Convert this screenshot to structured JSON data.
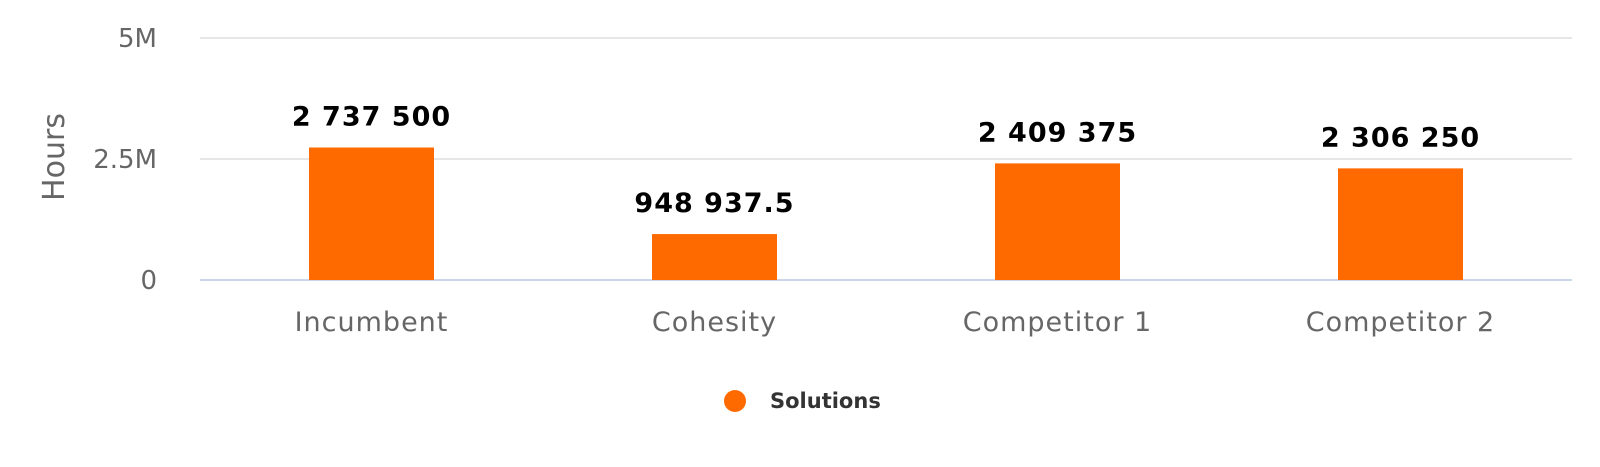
{
  "chart_data": {
    "type": "bar",
    "title": "",
    "xlabel": "",
    "ylabel": "Hours",
    "categories": [
      "Incumbent",
      "Cohesity",
      "Competitor 1",
      "Competitor 2"
    ],
    "series": [
      {
        "name": "Solutions",
        "values": [
          2737500,
          948937.5,
          2409375,
          2306250
        ],
        "data_labels": [
          "2 737 500",
          "948 937.5",
          "2 409 375",
          "2 306 250"
        ]
      }
    ],
    "ylim": [
      0,
      5000000
    ],
    "yticks": [
      0,
      2500000,
      5000000
    ],
    "ytick_labels": [
      "0",
      "2.5M",
      "5M"
    ],
    "grid": true,
    "legend_position": "bottom-center",
    "colors": {
      "bar": "#ff6a00",
      "grid": "#e6e6e6",
      "axis_line": "#ccd6eb"
    }
  }
}
